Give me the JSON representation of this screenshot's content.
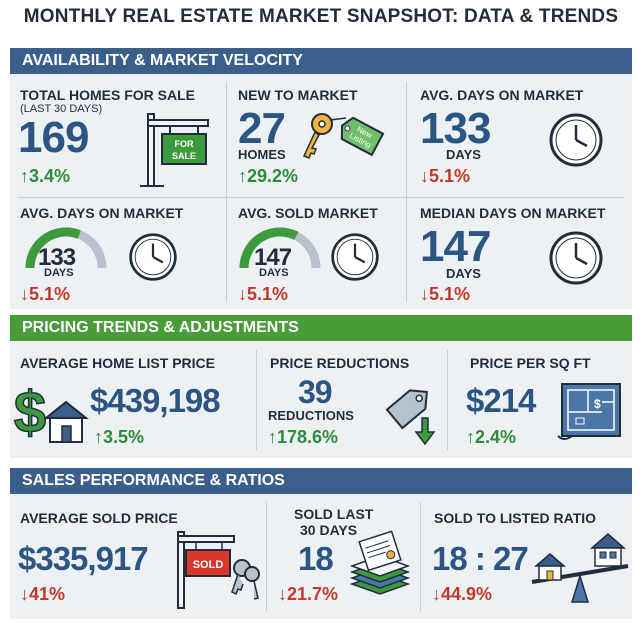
{
  "title": "MONTHLY REAL ESTATE MARKET SNAPSHOT: DATA & TRENDS",
  "sections": {
    "availability": "AVAILABILITY & MARKET VELOCITY",
    "pricing": "PRICING TRENDS & ADJUSTMENTS",
    "sales": "SALES PERFORMANCE & RATIOS"
  },
  "availability": {
    "total_homes": {
      "label": "TOTAL HOMES FOR SALE",
      "sub": "(LAST 30 DAYS)",
      "value": "169",
      "change": "↑3.4%",
      "sign_text": [
        "FOR",
        "SALE"
      ]
    },
    "new_to_market": {
      "label": "NEW TO MARKET",
      "value": "27",
      "unit": "HOMES",
      "change": "↑29.2%",
      "tag_text": [
        "New",
        "Listing"
      ]
    },
    "avg_days_1": {
      "label": "AVG. DAYS ON MARKET",
      "value": "133",
      "unit": "DAYS",
      "change": "↓5.1%"
    },
    "avg_days_2": {
      "label": "AVG. DAYS ON MARKET",
      "value": "133",
      "unit": "DAYS",
      "change": "↓5.1%",
      "gauge_level": 0.62
    },
    "avg_sold_market": {
      "label": "AVG. SOLD MARKET",
      "value": "147",
      "unit": "DAYS",
      "change": "↓5.1%",
      "gauge_level": 0.65
    },
    "median_days": {
      "label": "MEDIAN DAYS ON MARKET",
      "value": "147",
      "unit": "DAYS",
      "change": "↓5.1%"
    }
  },
  "pricing": {
    "avg_list_price": {
      "label": "AVERAGE HOME LIST PRICE",
      "value": "$439,198",
      "change": "↑3.5%"
    },
    "price_reductions": {
      "label": "PRICE REDUCTIONS",
      "value": "39",
      "unit": "REDUCTIONS",
      "change": "↑178.6%"
    },
    "price_per_sqft": {
      "label": "PRICE PER SQ FT",
      "value": "$214",
      "change": "↑2.4%"
    }
  },
  "sales": {
    "avg_sold_price": {
      "label": "AVERAGE SOLD PRICE",
      "value": "$335,917",
      "change": "↓41%",
      "sign_text": "SOLD"
    },
    "sold_last_30": {
      "label_1": "SOLD LAST",
      "label_2": "30 DAYS",
      "value": "18",
      "change": "↓21.7%"
    },
    "sold_to_listed": {
      "label": "SOLD TO LISTED RATIO",
      "value": "18 : 27",
      "change": "↓44.9%"
    }
  },
  "colors": {
    "blue_band": "#3a5f8a",
    "green_band": "#4a9b3a",
    "number_blue": "#2b5582",
    "up_green": "#2e8b3a",
    "down_red": "#c0392b",
    "gauge_green": "#3d9a3d",
    "gauge_grey": "#b8c2cc"
  },
  "icons": [
    "for-sale-sign-icon",
    "key-with-tag-icon",
    "clock-icon",
    "gauge-icon",
    "dollar-house-icon",
    "price-tag-down-icon",
    "blueprint-icon",
    "sold-sign-icon",
    "document-stack-icon",
    "seesaw-houses-icon"
  ]
}
